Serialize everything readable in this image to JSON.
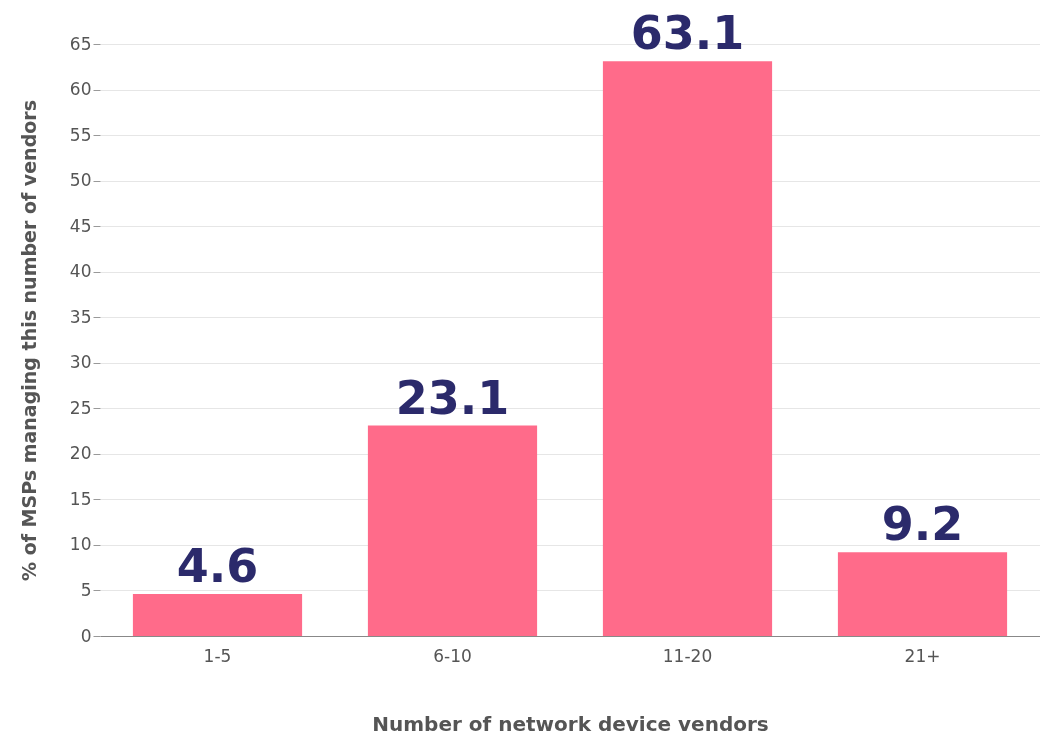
{
  "chart_data": {
    "type": "bar",
    "xlabel": "Number of network device vendors",
    "ylabel": "% of MSPs managing this number of vendors",
    "categories": [
      "1-5",
      "6-10",
      "11-20",
      "21+"
    ],
    "values": [
      4.6,
      23.1,
      63.1,
      9.2
    ],
    "color": "#ff6b8a",
    "ylim": [
      0,
      65
    ],
    "yticks": [
      0,
      5,
      10,
      15,
      20,
      25,
      30,
      35,
      40,
      45,
      50,
      55,
      60,
      65
    ],
    "grid": "y",
    "data_labels": true
  }
}
